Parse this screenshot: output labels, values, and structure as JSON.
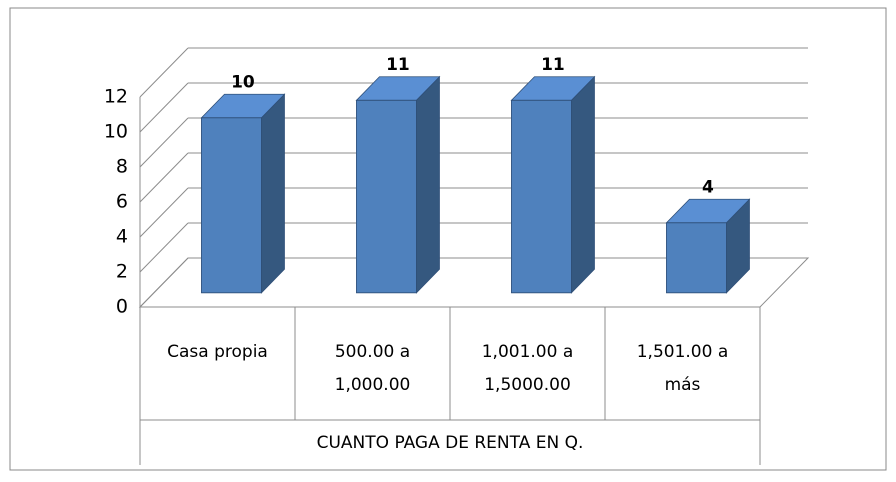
{
  "chart_data": {
    "type": "bar3d",
    "categories": [
      [
        "Casa propia"
      ],
      [
        "500.00 a",
        "1,000.00"
      ],
      [
        "1,001.00 a",
        "1,5000.00"
      ],
      [
        "1,501.00 a",
        "más"
      ]
    ],
    "values": [
      10,
      11,
      11,
      4
    ],
    "x_label": "CUANTO PAGA DE RENTA EN Q.",
    "color": "#4f81bd",
    "ylim": [
      0,
      12
    ],
    "yticks": [
      0,
      2,
      4,
      6,
      8,
      10,
      12
    ],
    "grid": true
  }
}
